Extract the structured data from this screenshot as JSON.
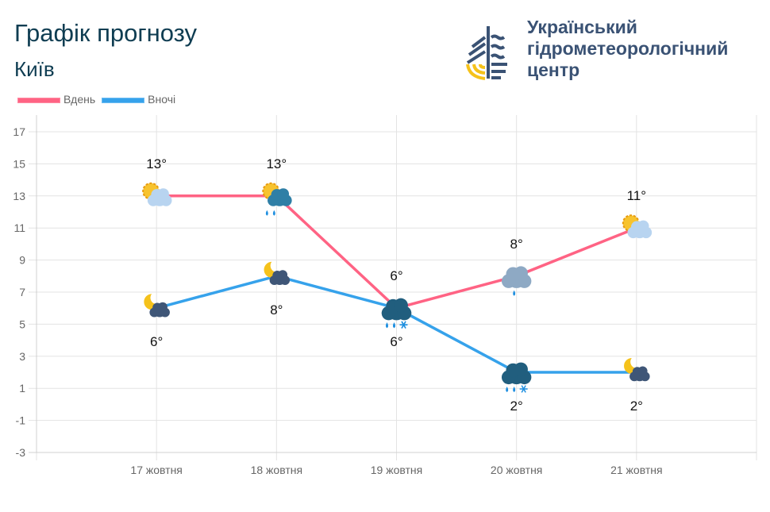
{
  "header": {
    "title": "Графік прогнозу",
    "city": "Київ"
  },
  "organization": {
    "line1": "Український",
    "line2": "гідрометеорологічний",
    "line3": "центр"
  },
  "colors": {
    "day": "#ff6384",
    "night": "#36a2eb"
  },
  "chart_data": {
    "type": "line",
    "categories": [
      "17 жовтня",
      "18 жовтня",
      "19 жовтня",
      "20 жовтня",
      "21 жовтня"
    ],
    "series": [
      {
        "name": "Вдень",
        "values": [
          13,
          13,
          6,
          8,
          11
        ],
        "labels": [
          "13°",
          "13°",
          "6°",
          "8°",
          "11°"
        ],
        "icons": [
          "sun-cloud",
          "sun-rain-cloud",
          "rain-snow-cloud",
          "rain-cloud",
          "sun-cloud"
        ]
      },
      {
        "name": "Вночі",
        "values": [
          6,
          8,
          6,
          2,
          2
        ],
        "labels": [
          "6°",
          "8°",
          "6°",
          "2°",
          "2°"
        ],
        "icons": [
          "moon-cloud",
          "moon-cloud",
          "rain-snow-cloud",
          "rain-snow-cloud",
          "moon-cloud"
        ]
      }
    ],
    "yticks": [
      "17",
      "15",
      "13",
      "11",
      "9",
      "7",
      "5",
      "3",
      "1",
      "-1",
      "-3"
    ],
    "ylim": [
      -3,
      17
    ],
    "grid": true,
    "legend": "top-left"
  }
}
